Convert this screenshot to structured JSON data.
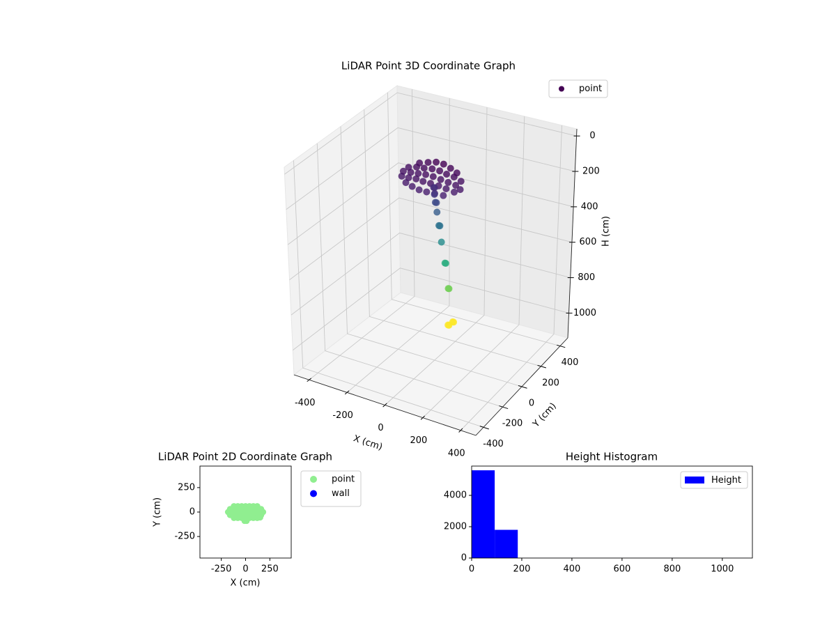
{
  "chart_data": [
    {
      "type": "scatter3d",
      "title": "LiDAR Point 3D Coordinate Graph",
      "xlabel": "X (cm)",
      "ylabel": "Y (cm)",
      "zlabel": "H (cm)",
      "xlim": [
        -480,
        480
      ],
      "ylim": [
        -480,
        480
      ],
      "zlim": [
        -40,
        1140
      ],
      "z_inverted": true,
      "xticks": [
        -400,
        -200,
        0,
        200,
        400
      ],
      "yticks": [
        -400,
        -200,
        0,
        200,
        400
      ],
      "zticks": [
        0,
        200,
        400,
        600,
        800,
        1000
      ],
      "colormap": "viridis",
      "grid": true,
      "legend": "upper right",
      "series": [
        {
          "name": "point",
          "color": "#440154",
          "x": [
            -100,
            -60,
            -20,
            20,
            60,
            100,
            -140,
            -100,
            -60,
            -20,
            20,
            60,
            100,
            140,
            -150,
            -110,
            -70,
            -30,
            10,
            50,
            90,
            130,
            160,
            -140,
            -100,
            -60,
            -20,
            20,
            60,
            100,
            140,
            -100,
            -60,
            -20,
            20,
            60,
            100,
            -20,
            -15,
            -21,
            -23,
            -17,
            -24,
            -26,
            -21,
            -28,
            -30,
            -25,
            -33,
            -29,
            -36,
            -31,
            -41,
            -36
          ],
          "y": [
            60,
            70,
            75,
            75,
            70,
            60,
            30,
            35,
            35,
            40,
            40,
            35,
            35,
            30,
            0,
            0,
            0,
            0,
            0,
            0,
            0,
            0,
            -10,
            -30,
            -35,
            -35,
            -40,
            -40,
            -35,
            -35,
            -30,
            -60,
            -70,
            -75,
            -75,
            -70,
            -60,
            50,
            50,
            58,
            68,
            68,
            83,
            102,
            102,
            126,
            159,
            159,
            193,
            193,
            238,
            238,
            202,
            202
          ],
          "z": [
            90,
            80,
            70,
            70,
            80,
            90,
            110,
            100,
            95,
            90,
            90,
            95,
            100,
            110,
            120,
            115,
            110,
            105,
            105,
            110,
            115,
            120,
            130,
            130,
            125,
            120,
            120,
            120,
            125,
            130,
            140,
            140,
            145,
            150,
            150,
            150,
            155,
            200,
            200,
            243,
            294,
            294,
            357,
            443,
            443,
            549,
            685,
            685,
            847,
            847,
            1060,
            1060,
            1060,
            1060
          ]
        }
      ]
    },
    {
      "type": "scatter",
      "title": "LiDAR Point 2D Coordinate Graph",
      "xlabel": "X (cm)",
      "ylabel": "Y (cm)",
      "xlim": [
        -470,
        470
      ],
      "ylim": [
        -470,
        470
      ],
      "xticks": [
        -250,
        0,
        250
      ],
      "yticks": [
        -250,
        0,
        250
      ],
      "legend": "outside right",
      "series": [
        {
          "name": "point",
          "color": "lightgreen",
          "x": [
            -120,
            -80,
            -40,
            0,
            40,
            80,
            120,
            -160,
            -120,
            -80,
            -40,
            0,
            40,
            80,
            120,
            160,
            -180,
            -140,
            -100,
            -60,
            -20,
            20,
            60,
            100,
            140,
            180,
            -160,
            -120,
            -80,
            -40,
            0,
            40,
            80,
            120,
            160,
            -120,
            -80,
            -40,
            0,
            40,
            80,
            120,
            150,
            -10,
            10
          ],
          "y": [
            60,
            60,
            60,
            60,
            60,
            60,
            60,
            30,
            30,
            30,
            30,
            30,
            30,
            30,
            30,
            30,
            0,
            0,
            0,
            0,
            0,
            0,
            0,
            0,
            0,
            0,
            -30,
            -30,
            -30,
            -30,
            -30,
            -30,
            -30,
            -30,
            -30,
            -60,
            -60,
            -60,
            -60,
            -60,
            -60,
            -60,
            -55,
            -90,
            -90
          ]
        },
        {
          "name": "wall",
          "color": "blue",
          "x": [],
          "y": []
        }
      ]
    },
    {
      "type": "histogram",
      "title": "Height Histogram",
      "label": "Height",
      "color": "blue",
      "bins": [
        0,
        92,
        184,
        276,
        368,
        460,
        552,
        644,
        736,
        828,
        920,
        1012,
        1104
      ],
      "values": [
        5600,
        1800,
        2,
        2,
        2,
        2,
        2,
        2,
        2,
        0,
        0,
        2
      ],
      "xlim": [
        0,
        1120
      ],
      "ylim": [
        0,
        5870
      ],
      "xticks": [
        0,
        200,
        400,
        600,
        800,
        1000
      ],
      "yticks": [
        0,
        2000,
        4000
      ],
      "legend": "upper right"
    }
  ]
}
